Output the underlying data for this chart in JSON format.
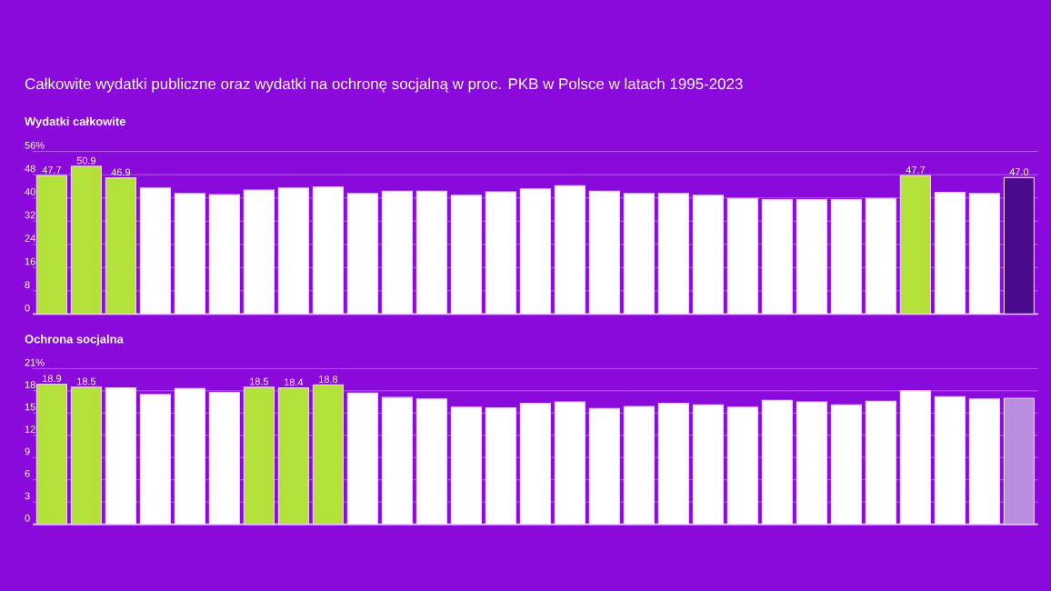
{
  "chart_data": [
    {
      "type": "bar",
      "title": "Całkowite wydatki publiczne oraz wydatki na ochronę socjalną w proc. PKB w Polsce w latach 1995-2023",
      "subtitle": "Wydatki całkowite",
      "categories": [
        null,
        null,
        null,
        null,
        null,
        null,
        null,
        null,
        null,
        null,
        null,
        null,
        null,
        null,
        null,
        null,
        null,
        null,
        null,
        null,
        null,
        null,
        null,
        null,
        null,
        null,
        null,
        null,
        null
      ],
      "values": [
        47.7,
        50.9,
        46.9,
        43.4,
        41.5,
        41.1,
        42.7,
        43.4,
        43.8,
        41.5,
        42.3,
        42.3,
        40.9,
        42.1,
        43.1,
        44.2,
        42.3,
        41.5,
        41.5,
        40.9,
        39.8,
        39.4,
        39.4,
        39.4,
        39.8,
        47.7,
        41.9,
        41.5,
        47.0
      ],
      "value_labels": [
        "47.7",
        "50.9",
        "46.9",
        null,
        null,
        null,
        null,
        null,
        null,
        null,
        null,
        null,
        null,
        null,
        null,
        null,
        null,
        null,
        null,
        null,
        null,
        null,
        null,
        null,
        null,
        "47.7",
        null,
        null,
        "47.0"
      ],
      "colors": [
        "#b4e03a",
        "#b4e03a",
        "#b4e03a",
        "#ffffff",
        "#ffffff",
        "#ffffff",
        "#ffffff",
        "#ffffff",
        "#ffffff",
        "#ffffff",
        "#ffffff",
        "#ffffff",
        "#ffffff",
        "#ffffff",
        "#ffffff",
        "#ffffff",
        "#ffffff",
        "#ffffff",
        "#ffffff",
        "#ffffff",
        "#ffffff",
        "#ffffff",
        "#ffffff",
        "#ffffff",
        "#ffffff",
        "#b4e03a",
        "#ffffff",
        "#ffffff",
        "#4a0a8c"
      ],
      "ylim": [
        0,
        56
      ],
      "yticks": [
        0,
        8,
        16,
        24,
        32,
        40,
        48,
        {
          "value": 56,
          "label": "56%"
        }
      ],
      "grid": "y",
      "tick_labels": "y"
    },
    {
      "type": "bar",
      "title": "Ochrona socjalna",
      "categories": [
        null,
        null,
        null,
        null,
        null,
        null,
        null,
        null,
        null,
        null,
        null,
        null,
        null,
        null,
        null,
        null,
        null,
        null,
        null,
        null,
        null,
        null,
        null,
        null,
        null,
        null,
        null,
        null,
        null
      ],
      "values": [
        18.9,
        18.5,
        18.4,
        17.5,
        18.3,
        17.8,
        18.5,
        18.4,
        18.8,
        17.7,
        17.1,
        16.9,
        15.8,
        15.7,
        16.3,
        16.5,
        15.6,
        15.9,
        16.3,
        16.1,
        15.8,
        16.7,
        16.5,
        16.1,
        16.6,
        18.0,
        17.2,
        16.9,
        17.0
      ],
      "value_labels": [
        "18.9",
        "18.5",
        null,
        null,
        null,
        null,
        "18.5",
        "18.4",
        "18.8",
        null,
        null,
        null,
        null,
        null,
        null,
        null,
        null,
        null,
        null,
        null,
        null,
        null,
        null,
        null,
        null,
        null,
        null,
        null,
        null
      ],
      "colors": [
        "#b4e03a",
        "#b4e03a",
        "#ffffff",
        "#ffffff",
        "#ffffff",
        "#ffffff",
        "#b4e03a",
        "#b4e03a",
        "#b4e03a",
        "#ffffff",
        "#ffffff",
        "#ffffff",
        "#ffffff",
        "#ffffff",
        "#ffffff",
        "#ffffff",
        "#ffffff",
        "#ffffff",
        "#ffffff",
        "#ffffff",
        "#ffffff",
        "#ffffff",
        "#ffffff",
        "#ffffff",
        "#ffffff",
        "#ffffff",
        "#ffffff",
        "#ffffff",
        "#b98ee0"
      ],
      "ylim": [
        0,
        21
      ],
      "yticks": [
        0,
        3,
        6,
        9,
        12,
        15,
        18,
        {
          "value": 21,
          "label": "21%"
        }
      ],
      "grid": "y",
      "tick_labels": "y"
    }
  ]
}
